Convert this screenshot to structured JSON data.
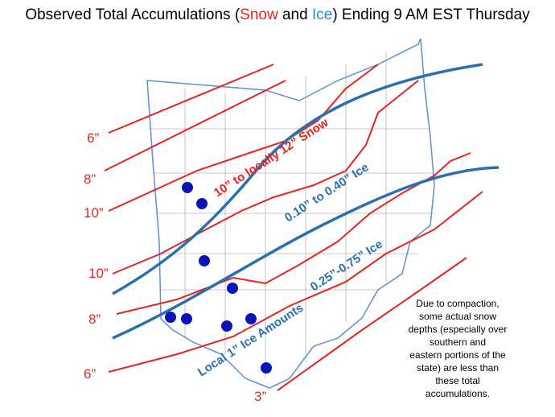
{
  "title": {
    "parts": [
      "Observed Total Accumulations (",
      "Snow",
      " and ",
      "Ice",
      ") Ending 9 AM EST Thursday"
    ]
  },
  "contour_labels": [
    "6”",
    "8”",
    "10”",
    "10”",
    "8”",
    "6”",
    "3”"
  ],
  "band_labels": [
    "10” to locally 12” Snow",
    "0.10” to 0.40” Ice",
    "0.25”-0.75” Ice",
    "Local 1” Ice Amounts"
  ],
  "note": [
    "Due to compaction,",
    "some actual snow",
    "depths (especially over",
    "southern and",
    "eastern portions of the",
    "state) are less than",
    "these total",
    "accumulations."
  ]
}
